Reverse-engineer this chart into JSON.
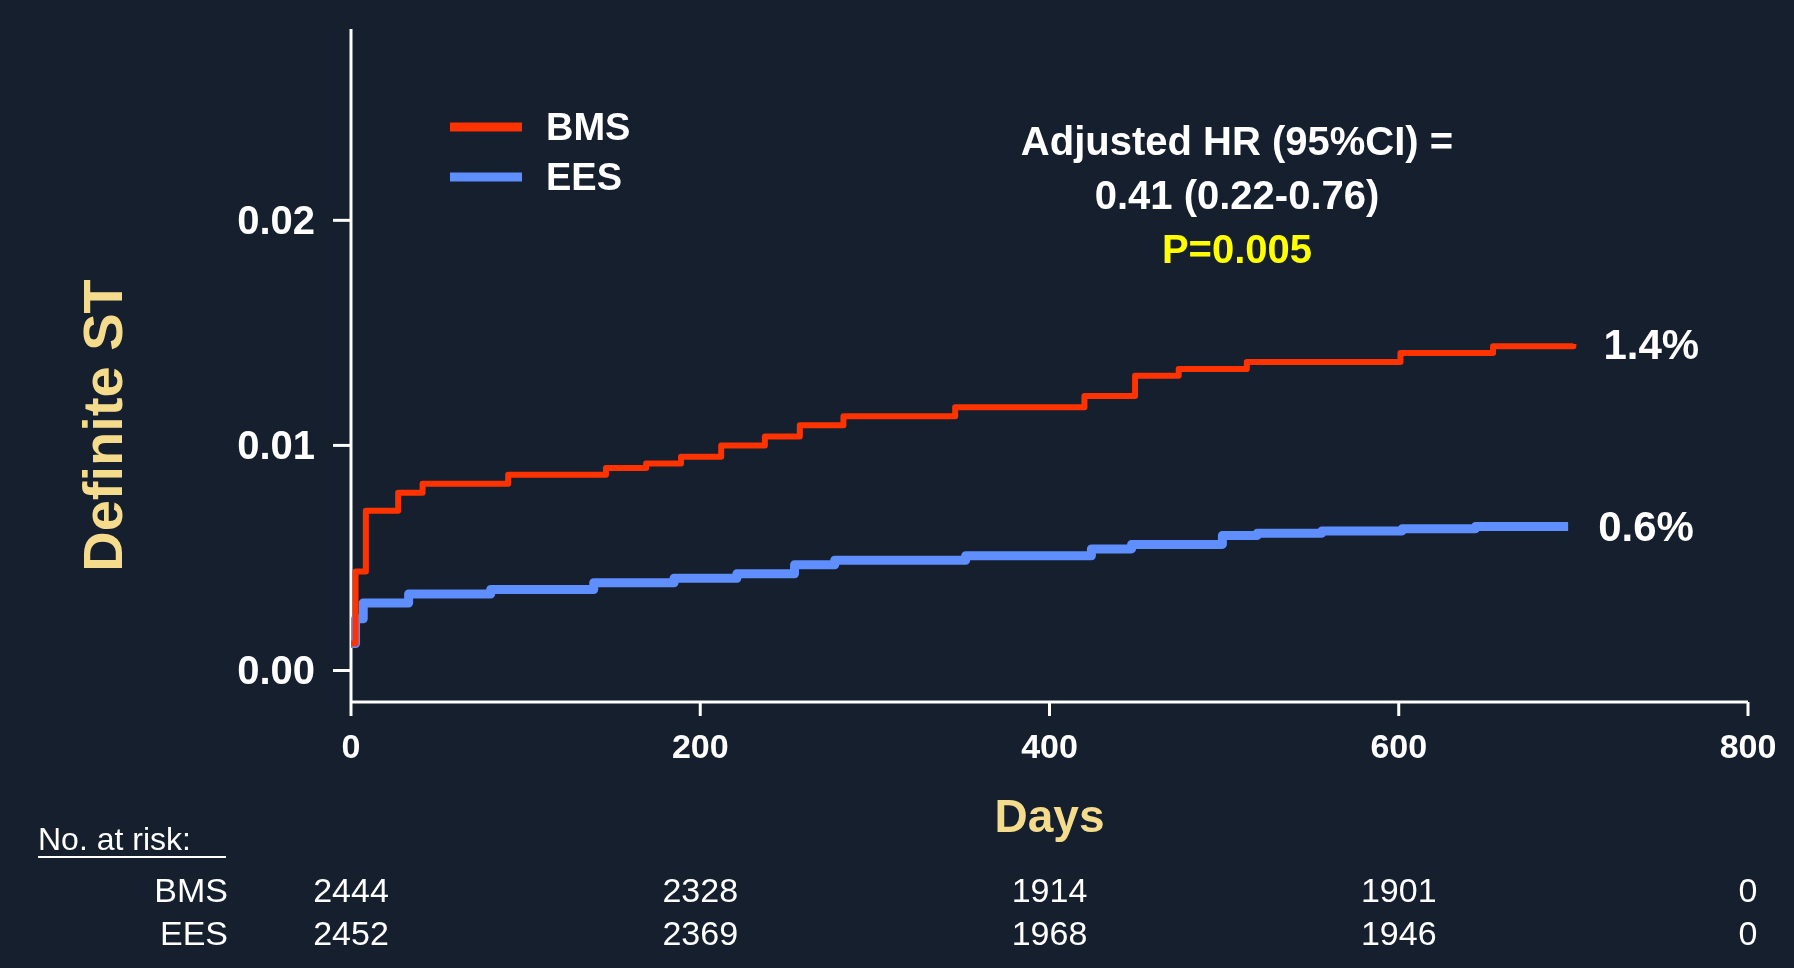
{
  "chart_data": {
    "type": "step",
    "xlabel": "Days",
    "ylabel": "Definite ST",
    "x": [
      0,
      2.6,
      8.5,
      27,
      41,
      90,
      146,
      169,
      189,
      212,
      237,
      257,
      282,
      346,
      420,
      449,
      474,
      513,
      601,
      654,
      700
    ],
    "series": [
      {
        "name": "BMS",
        "color": "#ff3300",
        "values": [
          0.0012,
          0.0044,
          0.0071,
          0.0079,
          0.0083,
          0.0087,
          0.009,
          0.0092,
          0.0095,
          0.01,
          0.0104,
          0.0109,
          0.0113,
          0.0117,
          0.0122,
          0.0131,
          0.0134,
          0.0137,
          0.0141,
          0.0144,
          0.0145
        ]
      },
      {
        "name": "EES",
        "color": "#5f8fff",
        "x": [
          0,
          2.6,
          7,
          33,
          80,
          139,
          185,
          221,
          254,
          277,
          352,
          424,
          447,
          499,
          519,
          556,
          602,
          644,
          697
        ],
        "values": [
          0.0012,
          0.0023,
          0.003,
          0.0034,
          0.0036,
          0.0039,
          0.0041,
          0.0043,
          0.0047,
          0.0049,
          0.0051,
          0.0054,
          0.0056,
          0.006,
          0.0061,
          0.0062,
          0.0063,
          0.0064,
          0.0064
        ]
      }
    ],
    "xlim": [
      0,
      800
    ],
    "xticks": [
      0,
      200,
      400,
      600,
      800
    ],
    "ylim": [
      -0.0014,
      0.0285
    ],
    "yticks": [
      {
        "value": 0,
        "label": "0.00"
      },
      {
        "value": 0.01,
        "label": "0.01"
      },
      {
        "value": 0.02,
        "label": "0.02"
      }
    ],
    "grid": false,
    "legend": "top left",
    "marker": "none",
    "line_style": "solid",
    "annotations": [
      "Adjusted HR (95%CI) =",
      "0.41 (0.22-0.76)",
      "P=0.005",
      "No. at risk:",
      {
        "text": "1.4%",
        "x": 700,
        "y": 0.0145
      },
      {
        "text": "0.6%",
        "x": 697,
        "y": 0.0064
      },
      "BMS",
      "2444",
      "2328",
      "1914",
      "1901",
      "0",
      "EES",
      "2452",
      "2369",
      "1968",
      "1946",
      "0"
    ]
  }
}
